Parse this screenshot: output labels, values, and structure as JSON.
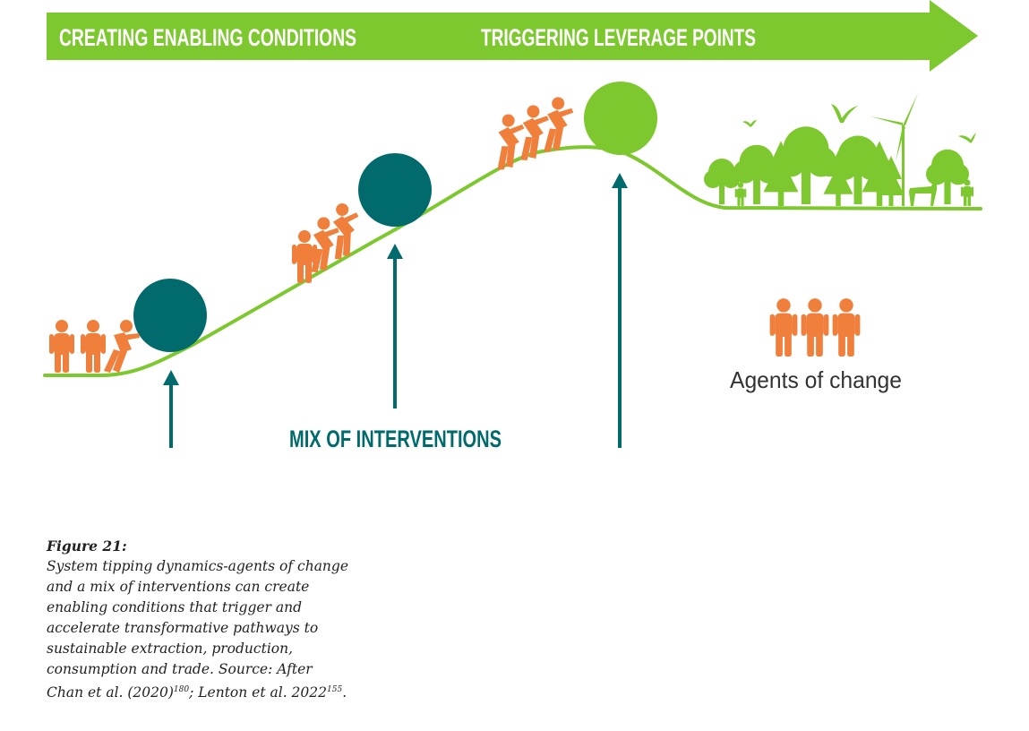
{
  "banner": {
    "left_label": "CREATING ENABLING CONDITIONS",
    "right_label": "TRIGGERING LEVERAGE POINTS"
  },
  "interventions_label": "MIX OF INTERVENTIONS",
  "agents_label": "Agents of change",
  "colors": {
    "green": "#7dc82f",
    "teal": "#006a6c",
    "orange": "#f07f3c",
    "text": "#222222"
  },
  "caption": {
    "title": "Figure 21:",
    "body": "System tipping dynamics-agents of change and a mix of interventions can create enabling conditions that trigger and accelerate transformative pathways to sustainable extraction, production, consumption and trade. Source: After Chan et al. (2020)",
    "ref1": "180",
    "mid": "; Lenton et al. 2022",
    "ref2": "155",
    "end": "."
  },
  "icons": [
    "person-icon",
    "ball-icon",
    "tree-icon",
    "wind-turbine-icon",
    "deer-icon",
    "bird-icon"
  ]
}
